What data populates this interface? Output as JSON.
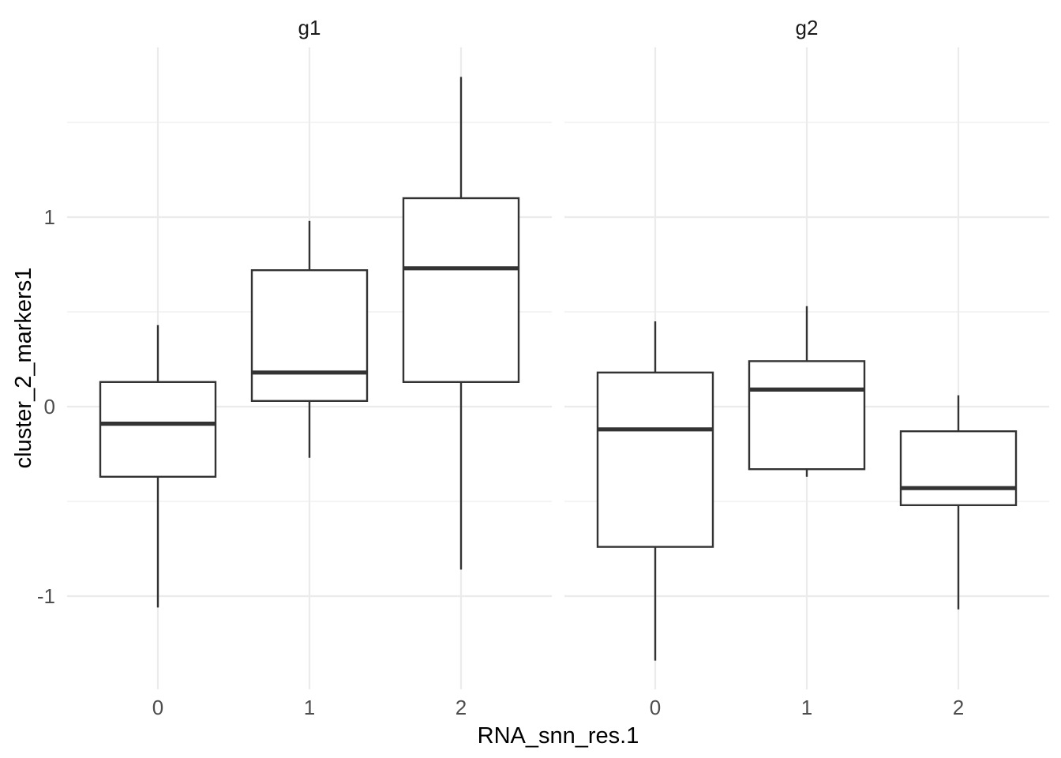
{
  "chart_data": {
    "type": "boxplot",
    "title": "",
    "xlabel": "RNA_snn_res.1",
    "ylabel": "cluster_2_markers1",
    "categories": [
      "0",
      "1",
      "2"
    ],
    "y_ticks": [
      {
        "value": 1,
        "label": "1"
      },
      {
        "value": 0,
        "label": "0"
      },
      {
        "value": -1,
        "label": "-1"
      }
    ],
    "y_minor_gridlines": [
      1.5,
      0.5,
      -0.5
    ],
    "ylim": [
      -1.49,
      1.9
    ],
    "grid": true,
    "legend_position": "none",
    "facets": [
      {
        "label": "g1",
        "boxes": [
          {
            "category": "0",
            "whisker_min": -1.06,
            "q1": -0.37,
            "median": -0.09,
            "q3": 0.13,
            "whisker_max": 0.43
          },
          {
            "category": "1",
            "whisker_min": -0.27,
            "q1": 0.03,
            "median": 0.18,
            "q3": 0.72,
            "whisker_max": 0.98
          },
          {
            "category": "2",
            "whisker_min": -0.86,
            "q1": 0.13,
            "median": 0.73,
            "q3": 1.1,
            "whisker_max": 1.74
          }
        ]
      },
      {
        "label": "g2",
        "boxes": [
          {
            "category": "0",
            "whisker_min": -1.34,
            "q1": -0.74,
            "median": -0.12,
            "q3": 0.18,
            "whisker_max": 0.45
          },
          {
            "category": "1",
            "whisker_min": -0.37,
            "q1": -0.33,
            "median": 0.09,
            "q3": 0.24,
            "whisker_max": 0.53
          },
          {
            "category": "2",
            "whisker_min": -1.07,
            "q1": -0.52,
            "median": -0.43,
            "q3": -0.13,
            "whisker_max": 0.06
          }
        ]
      }
    ],
    "colors": {
      "box_stroke": "#333333",
      "box_fill": "#FFFFFF",
      "grid_major": "#EBEBEB",
      "grid_minor": "#F1F1F1",
      "axis_text": "#4D4D4D",
      "strip_text": "#1A1A1A",
      "axis_title": "#000000",
      "background": "#FFFFFF"
    }
  }
}
